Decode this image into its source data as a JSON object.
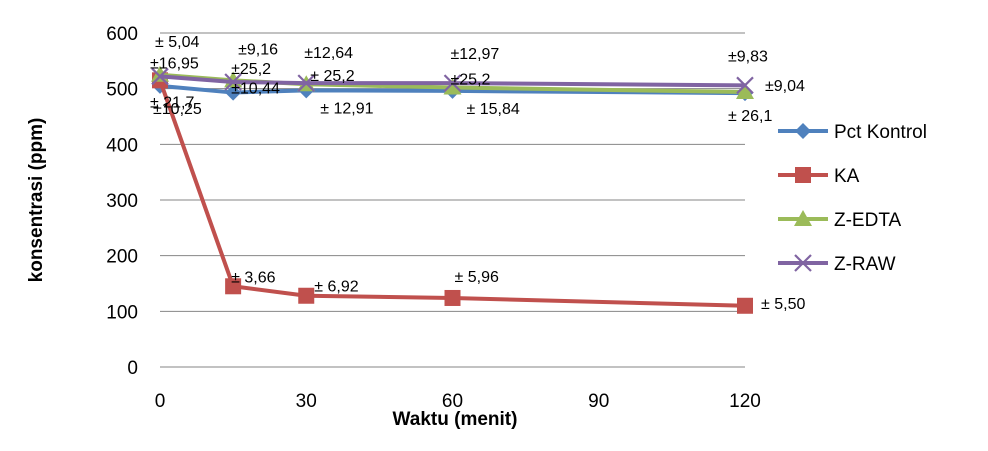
{
  "chart_data": {
    "type": "line",
    "title": "",
    "xlabel": "Waktu (menit)",
    "ylabel": "konsentrasi (ppm)",
    "xlim": [
      0,
      120
    ],
    "ylim": [
      0,
      600
    ],
    "xticks": [
      "0",
      "30",
      "60",
      "90",
      "120"
    ],
    "yticks": [
      "0",
      "100",
      "200",
      "300",
      "400",
      "500",
      "600"
    ],
    "grid": "horizontal",
    "legend_position": "right",
    "series": [
      {
        "name": "Pct Kontrol",
        "color": "#4F81BD",
        "marker": "diamond",
        "x": [
          0,
          15,
          30,
          60,
          120
        ],
        "y": [
          505,
          493,
          497,
          496,
          492
        ]
      },
      {
        "name": "KA",
        "color": "#C0504D",
        "marker": "square",
        "x": [
          0,
          15,
          30,
          60,
          120
        ],
        "y": [
          515,
          145,
          128,
          124,
          110
        ]
      },
      {
        "name": "Z-EDTA",
        "color": "#9BBB59",
        "marker": "triangle",
        "x": [
          0,
          15,
          30,
          60,
          120
        ],
        "y": [
          525,
          515,
          508,
          502,
          494
        ]
      },
      {
        "name": "Z-RAW",
        "color": "#8064A2",
        "marker": "x",
        "x": [
          0,
          15,
          30,
          60,
          120
        ],
        "y": [
          522,
          512,
          510,
          510,
          506
        ]
      }
    ],
    "annotations": [
      {
        "text": "± 5,04",
        "x": 0,
        "y": 525
      },
      {
        "text": "±16,95",
        "x": 0,
        "y": 522
      },
      {
        "text": "±10,25",
        "x": 0,
        "y": 505
      },
      {
        "text": "± 21,7",
        "x": 0,
        "y": 515
      },
      {
        "text": "±9,16",
        "x": 15,
        "y": 515
      },
      {
        "text": "±25,2",
        "x": 15,
        "y": 512
      },
      {
        "text": "±10,44",
        "x": 15,
        "y": 493
      },
      {
        "text": "± 3,66",
        "x": 15,
        "y": 145
      },
      {
        "text": "±12,64",
        "x": 30,
        "y": 510
      },
      {
        "text": "± 25,2",
        "x": 30,
        "y": 508
      },
      {
        "text": "± 12,91",
        "x": 30,
        "y": 497
      },
      {
        "text": "± 6,92",
        "x": 30,
        "y": 128
      },
      {
        "text": "±12,97",
        "x": 60,
        "y": 510
      },
      {
        "text": "±25,2",
        "x": 60,
        "y": 502
      },
      {
        "text": "± 15,84",
        "x": 60,
        "y": 496
      },
      {
        "text": "± 5,96",
        "x": 60,
        "y": 124
      },
      {
        "text": "±9,83",
        "x": 120,
        "y": 506
      },
      {
        "text": "±9,04",
        "x": 120,
        "y": 494
      },
      {
        "text": "± 26,1",
        "x": 120,
        "y": 492
      },
      {
        "text": "± 5,50",
        "x": 120,
        "y": 110
      }
    ]
  }
}
